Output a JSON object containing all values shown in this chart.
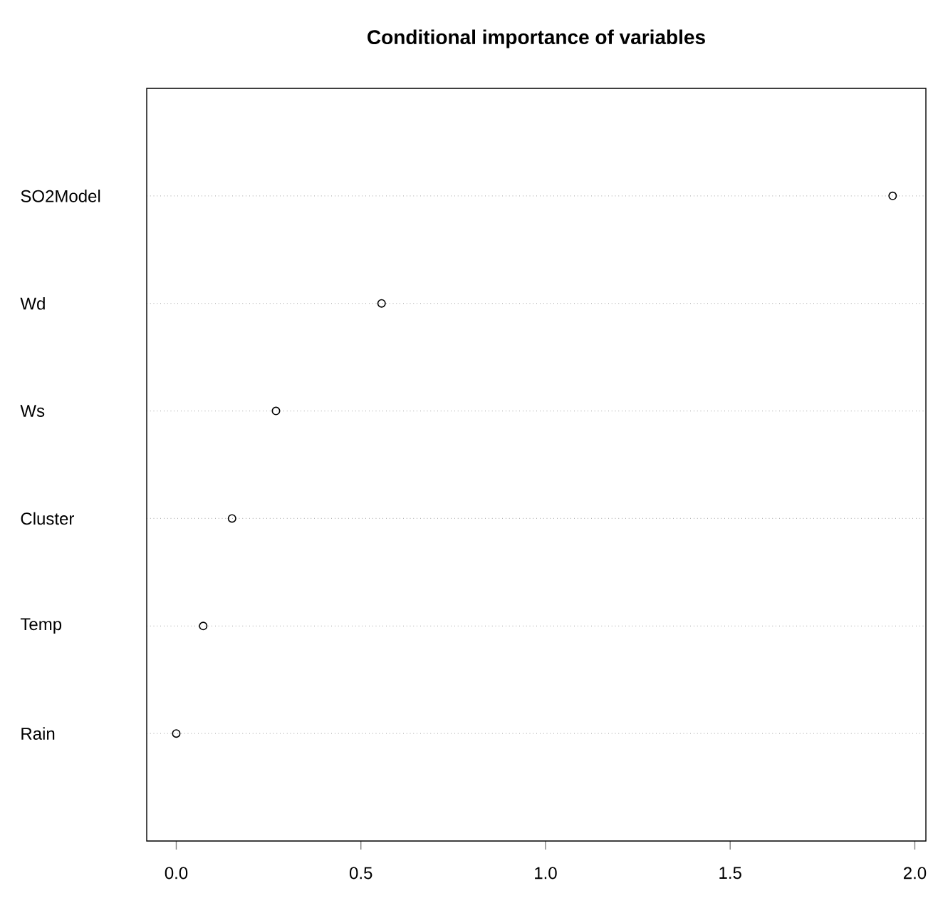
{
  "chart_data": {
    "type": "scatter",
    "title": "Conditional importance of variables",
    "orientation": "horizontal",
    "categories": [
      "SO2Model",
      "Wd",
      "Ws",
      "Cluster",
      "Temp",
      "Rain"
    ],
    "values": [
      1.94,
      0.556,
      0.27,
      0.151,
      0.073,
      0.0
    ],
    "color": "#000000",
    "xlim": [
      -0.08,
      2.03
    ],
    "xticks": [
      {
        "value": 0,
        "label": "0.0"
      },
      {
        "value": 0.5,
        "label": "0.5"
      },
      {
        "value": 1,
        "label": "1.0"
      },
      {
        "value": 1.5,
        "label": "1.5"
      },
      {
        "value": 2,
        "label": "2.0"
      }
    ],
    "grid": "y",
    "marker": "circle"
  }
}
